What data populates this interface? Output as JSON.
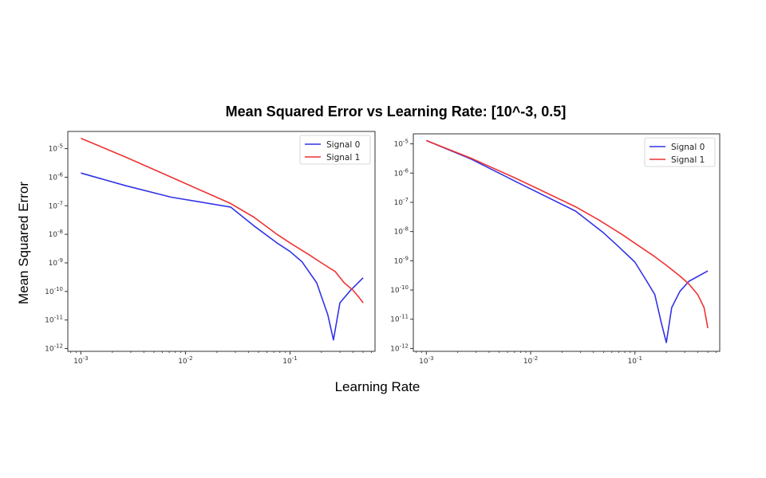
{
  "figure": {
    "title": "Mean Squared Error vs Learning Rate: [10^-3, 0.5]",
    "ylabel": "Mean Squared Error",
    "xlabel": "Learning Rate"
  },
  "colors": {
    "signal0": "#3333e6",
    "signal1": "#ee3333"
  },
  "chart_data": [
    {
      "type": "line",
      "xscale": "log",
      "yscale": "log",
      "xlim": [
        0.00075,
        0.65
      ],
      "ylim": [
        8e-13,
        4e-05
      ],
      "xticks": [
        {
          "value": 0.001,
          "label": "10^-3"
        },
        {
          "value": 0.01,
          "label": "10^-2"
        },
        {
          "value": 0.1,
          "label": "10^-1"
        }
      ],
      "yticks": [
        {
          "value": 1e-12,
          "label": "10^-12"
        },
        {
          "value": 1e-11,
          "label": "10^-11"
        },
        {
          "value": 1e-10,
          "label": "10^-10"
        },
        {
          "value": 1e-09,
          "label": "10^-9"
        },
        {
          "value": 1e-08,
          "label": "10^-8"
        },
        {
          "value": 1e-07,
          "label": "10^-7"
        },
        {
          "value": 1e-06,
          "label": "10^-6"
        },
        {
          "value": 1e-05,
          "label": "10^-5"
        }
      ],
      "grid": false,
      "legend": "top-right",
      "series": [
        {
          "name": "Signal 0",
          "color": "#3333e6",
          "x": [
            0.001,
            0.0027,
            0.0073,
            0.027,
            0.045,
            0.075,
            0.1,
            0.13,
            0.18,
            0.23,
            0.26,
            0.3,
            0.38,
            0.5
          ],
          "y": [
            1.4e-06,
            5e-07,
            2e-07,
            9e-08,
            2e-08,
            5e-09,
            2.5e-09,
            1.1e-09,
            2e-10,
            1.5e-11,
            2e-12,
            4e-11,
            1.1e-10,
            3e-10
          ]
        },
        {
          "name": "Signal 1",
          "color": "#ee3333",
          "x": [
            0.001,
            0.0027,
            0.0073,
            0.027,
            0.045,
            0.075,
            0.1,
            0.15,
            0.2,
            0.27,
            0.33,
            0.4,
            0.46,
            0.5
          ],
          "y": [
            2.3e-05,
            5e-06,
            1e-06,
            1.2e-07,
            4e-08,
            1e-08,
            5e-09,
            2e-09,
            1e-09,
            5e-10,
            2e-10,
            1.1e-10,
            6e-11,
            4e-11
          ]
        }
      ]
    },
    {
      "type": "line",
      "xscale": "log",
      "yscale": "log",
      "xlim": [
        0.00075,
        0.65
      ],
      "ylim": [
        8e-13,
        2.2e-05
      ],
      "xticks": [
        {
          "value": 0.001,
          "label": "10^-3"
        },
        {
          "value": 0.01,
          "label": "10^-2"
        },
        {
          "value": 0.1,
          "label": "10^-1"
        }
      ],
      "yticks": [
        {
          "value": 1e-12,
          "label": "10^-12"
        },
        {
          "value": 1e-11,
          "label": "10^-11"
        },
        {
          "value": 1e-10,
          "label": "10^-10"
        },
        {
          "value": 1e-09,
          "label": "10^-9"
        },
        {
          "value": 1e-08,
          "label": "10^-8"
        },
        {
          "value": 1e-07,
          "label": "10^-7"
        },
        {
          "value": 1e-06,
          "label": "10^-6"
        },
        {
          "value": 1e-05,
          "label": "10^-5"
        }
      ],
      "grid": false,
      "legend": "top-right",
      "series": [
        {
          "name": "Signal 0",
          "color": "#3333e6",
          "x": [
            0.001,
            0.0027,
            0.0073,
            0.027,
            0.05,
            0.07,
            0.1,
            0.13,
            0.155,
            0.18,
            0.2,
            0.225,
            0.27,
            0.33,
            0.5
          ],
          "y": [
            1.3e-05,
            3e-06,
            5e-07,
            5e-08,
            9e-09,
            3e-09,
            9e-10,
            2e-10,
            7e-11,
            7e-12,
            1.6e-12,
            2.5e-11,
            9e-11,
            2e-10,
            4.5e-10
          ]
        },
        {
          "name": "Signal 1",
          "color": "#ee3333",
          "x": [
            0.001,
            0.0027,
            0.0073,
            0.027,
            0.045,
            0.075,
            0.1,
            0.15,
            0.2,
            0.27,
            0.33,
            0.4,
            0.46,
            0.5
          ],
          "y": [
            1.3e-05,
            3.2e-06,
            6.5e-07,
            7e-08,
            2.5e-08,
            8e-09,
            4e-09,
            1.5e-09,
            7e-10,
            3e-10,
            1.6e-10,
            7e-11,
            2.5e-11,
            5e-12
          ]
        }
      ]
    }
  ]
}
